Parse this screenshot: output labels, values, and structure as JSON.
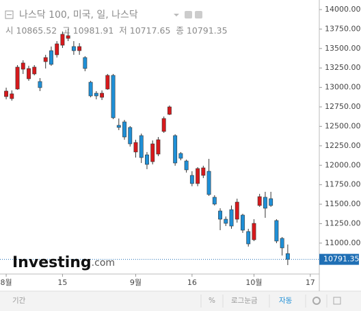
{
  "header": {
    "title": "나스닥 100, 미국, 일, 나스닥",
    "open_label": "시",
    "high_label": "고",
    "low_label": "저",
    "close_label": "종"
  },
  "watermark": {
    "brand": "Investing",
    "suffix": ".com"
  },
  "toolbar": {
    "period": "기간",
    "percent": "%",
    "log": "로그눈금",
    "auto": "자동"
  },
  "chart_data": {
    "type": "candlestick",
    "up_color": "#d7191c",
    "down_color": "#1f8fd6",
    "open": [
      12882,
      12856,
      12979,
      13234,
      13111,
      13173,
      13076,
      13331,
      13472,
      13419,
      13542,
      13630,
      13525,
      13472,
      13384,
      13067,
      12926,
      12873,
      12979,
      13155,
      12513,
      12557,
      12486,
      12170,
      12381,
      12134,
      12046,
      12143,
      12434,
      12654,
      12381,
      12152,
      12055,
      11870,
      11765,
      11870,
      11923,
      11589,
      11413,
      11307,
      11430,
      11307,
      11360,
      11149,
      11043,
      11483,
      11589,
      11571,
      11290,
      11061,
      10865.52
    ],
    "high": [
      12997,
      12962,
      13287,
      13349,
      13278,
      13287,
      13120,
      13419,
      13525,
      13595,
      13718,
      13753,
      13595,
      13569,
      13401,
      13085,
      12953,
      12962,
      13173,
      13173,
      12601,
      12583,
      12504,
      12328,
      12407,
      12170,
      12319,
      12363,
      12627,
      12768,
      12398,
      12170,
      12073,
      11923,
      11976,
      11994,
      12082,
      11615,
      11448,
      11342,
      11483,
      11571,
      11377,
      11184,
      11307,
      11633,
      11659,
      11659,
      11307,
      11078,
      10981.91
    ],
    "low": [
      12847,
      12830,
      12970,
      13173,
      13085,
      13155,
      12953,
      13243,
      13278,
      13384,
      13507,
      13595,
      13419,
      13419,
      13208,
      12873,
      12847,
      12838,
      12970,
      12592,
      12451,
      12328,
      12240,
      12099,
      12029,
      11950,
      12011,
      12117,
      12416,
      12645,
      11994,
      12064,
      11906,
      11730,
      11730,
      11835,
      11606,
      11483,
      11166,
      11219,
      11184,
      11263,
      11131,
      10955,
      11026,
      11466,
      11325,
      11466,
      10999,
      10841,
      10717.65
    ],
    "close": [
      12953,
      12918,
      13261,
      13314,
      13243,
      13261,
      12997,
      13384,
      13296,
      13560,
      13683,
      13665,
      13472,
      13525,
      13243,
      12891,
      12891,
      12926,
      13155,
      12610,
      12486,
      12363,
      12275,
      12293,
      12099,
      12011,
      12275,
      12328,
      12601,
      12750,
      12029,
      12090,
      11941,
      11765,
      11958,
      11967,
      11624,
      11501,
      11307,
      11254,
      11219,
      11527,
      11166,
      10990,
      11254,
      11597,
      11448,
      11483,
      11026,
      10938,
      10791.35
    ],
    "xlim": [
      -1.1,
      55.6
    ],
    "xticks": [
      {
        "value": 0,
        "label": "8월"
      },
      {
        "value": 10,
        "label": "15"
      },
      {
        "value": 23,
        "label": "9월"
      },
      {
        "value": 33,
        "label": "16"
      },
      {
        "value": 44,
        "label": "10월"
      },
      {
        "value": 54,
        "label": "17"
      }
    ],
    "ylim": [
      10603,
      14123
    ],
    "yticks": [
      {
        "value": 11000,
        "label": "11000.00"
      },
      {
        "value": 11250,
        "label": "11250.00"
      },
      {
        "value": 11500,
        "label": "11500.00"
      },
      {
        "value": 11750,
        "label": "11750.00"
      },
      {
        "value": 12000,
        "label": "12000.00"
      },
      {
        "value": 12250,
        "label": "12250.00"
      },
      {
        "value": 12500,
        "label": "12500.00"
      },
      {
        "value": 12750,
        "label": "12750.00"
      },
      {
        "value": 13000,
        "label": "13000.00"
      },
      {
        "value": 13250,
        "label": "13250.00"
      },
      {
        "value": 13500,
        "label": "13500.00"
      },
      {
        "value": 13750,
        "label": "13750.00"
      },
      {
        "value": 14000,
        "label": "14000.00"
      }
    ]
  }
}
